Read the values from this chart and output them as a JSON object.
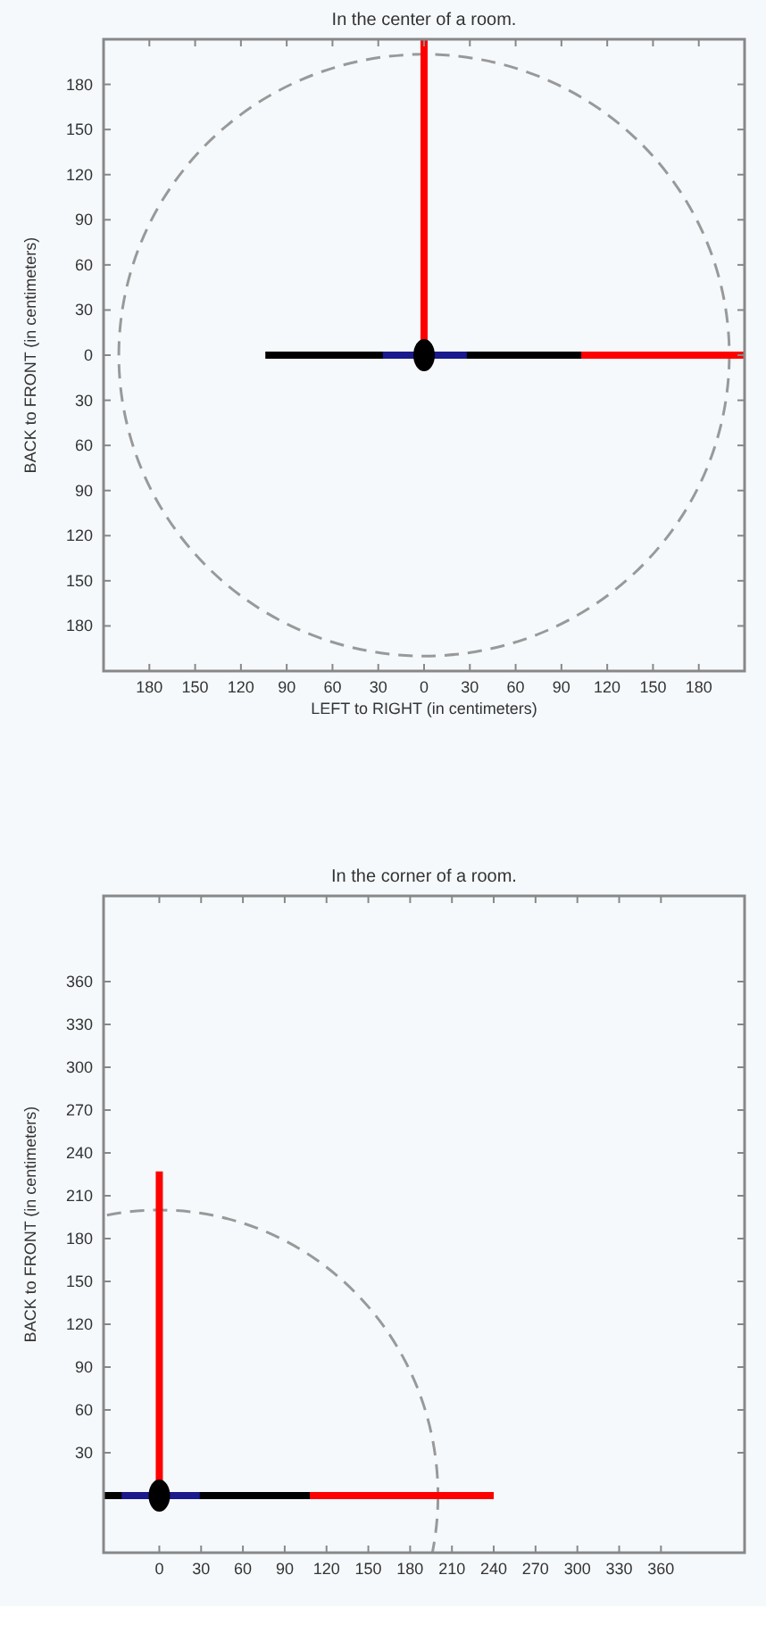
{
  "chart_data": [
    {
      "type": "line",
      "title": "In the center of a room.",
      "xlabel": "LEFT to RIGHT (in centimeters)",
      "ylabel": "BACK to FRONT (in centimeters)",
      "xlim": [
        -210,
        210
      ],
      "ylim": [
        -210,
        210
      ],
      "xticks": [
        {
          "value": -180,
          "label": "180"
        },
        {
          "value": -150,
          "label": "150"
        },
        {
          "value": -120,
          "label": "120"
        },
        {
          "value": -90,
          "label": "90"
        },
        {
          "value": -60,
          "label": "60"
        },
        {
          "value": -30,
          "label": "30"
        },
        0,
        30,
        60,
        90,
        120,
        150,
        180
      ],
      "yticks": [
        {
          "value": -180,
          "label": "180"
        },
        {
          "value": -150,
          "label": "150"
        },
        {
          "value": -120,
          "label": "120"
        },
        {
          "value": -90,
          "label": "90"
        },
        {
          "value": -60,
          "label": "60"
        },
        {
          "value": -30,
          "label": "30"
        },
        0,
        30,
        60,
        90,
        120,
        150,
        180
      ],
      "series": [
        {
          "color": "#ff0000",
          "x": [
            0,
            0
          ],
          "values": [
            0,
            210
          ]
        },
        {
          "color": "#ff0000",
          "x": [
            0,
            210
          ],
          "values": [
            0,
            0
          ]
        },
        {
          "color": "#000000",
          "x": [
            -104,
            103
          ],
          "values": [
            0,
            0
          ]
        },
        {
          "color": "#1a1a8c",
          "x": [
            -27,
            28
          ],
          "values": [
            0,
            0
          ]
        },
        {
          "type": "scatter",
          "color": "#000000",
          "marker": "circle",
          "x": [
            0
          ],
          "values": [
            0
          ]
        }
      ]
    },
    {
      "type": "line",
      "title": "In the corner of a room.",
      "ylabel": "BACK to FRONT (in centimeters)",
      "xlim": [
        -40,
        420
      ],
      "ylim": [
        -40,
        420
      ],
      "xticks": [
        0,
        30,
        60,
        90,
        120,
        150,
        180,
        210,
        240,
        270,
        300,
        330,
        360
      ],
      "yticks": [
        30,
        60,
        90,
        120,
        150,
        180,
        210,
        240,
        270,
        300,
        330,
        360
      ],
      "series": [
        {
          "color": "#ff0000",
          "x": [
            0,
            0
          ],
          "values": [
            0,
            227
          ]
        },
        {
          "color": "#ff0000",
          "x": [
            0,
            240
          ],
          "values": [
            0,
            0
          ]
        },
        {
          "color": "#000000",
          "x": [
            -40,
            108
          ],
          "values": [
            0,
            0
          ]
        },
        {
          "color": "#1a1a8c",
          "x": [
            -27,
            29
          ],
          "values": [
            0,
            0
          ]
        },
        {
          "type": "scatter",
          "color": "#000000",
          "marker": "circle",
          "x": [
            0
          ],
          "values": [
            0
          ]
        }
      ]
    }
  ]
}
